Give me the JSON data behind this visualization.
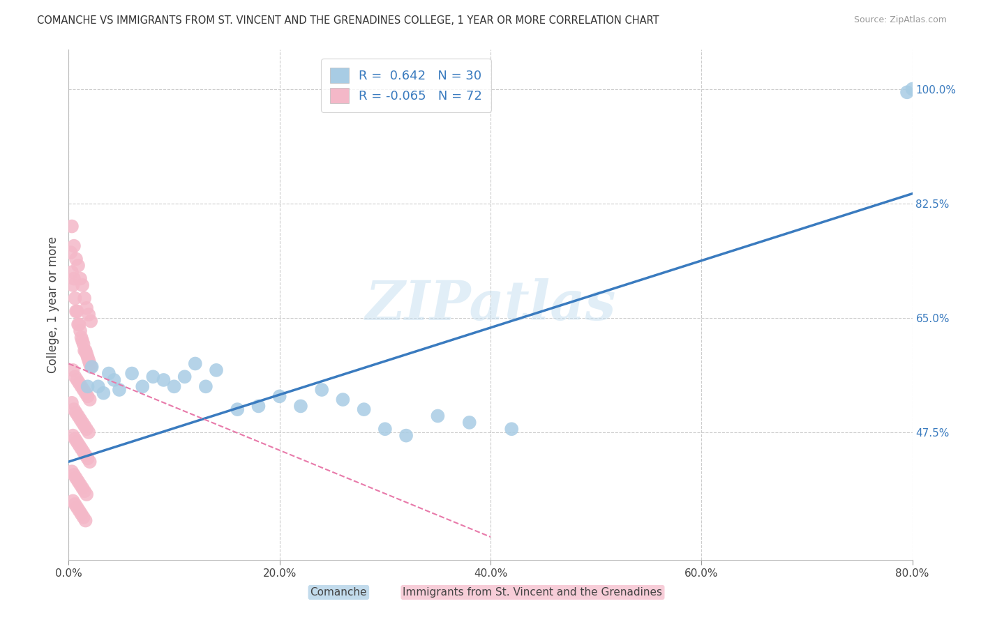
{
  "title": "COMANCHE VS IMMIGRANTS FROM ST. VINCENT AND THE GRENADINES COLLEGE, 1 YEAR OR MORE CORRELATION CHART",
  "source": "Source: ZipAtlas.com",
  "ylabel": "College, 1 year or more",
  "xlim": [
    0.0,
    0.8
  ],
  "ylim": [
    0.28,
    1.06
  ],
  "xtick_labels": [
    "0.0%",
    "20.0%",
    "40.0%",
    "60.0%",
    "80.0%"
  ],
  "xtick_vals": [
    0.0,
    0.2,
    0.4,
    0.6,
    0.8
  ],
  "ytick_vals": [
    0.475,
    0.65,
    0.825,
    1.0
  ],
  "right_ytick_labels": [
    "47.5%",
    "65.0%",
    "82.5%",
    "100.0%"
  ],
  "R_blue": 0.642,
  "N_blue": 30,
  "R_pink": -0.065,
  "N_pink": 72,
  "blue_color": "#a8cce4",
  "pink_color": "#f4b8c8",
  "blue_line_color": "#3a7bbf",
  "pink_line_color": "#e87aaa",
  "watermark": "ZIPatlas",
  "blue_scatter_x": [
    0.018,
    0.022,
    0.028,
    0.033,
    0.038,
    0.043,
    0.048,
    0.06,
    0.07,
    0.08,
    0.09,
    0.1,
    0.11,
    0.12,
    0.13,
    0.14,
    0.16,
    0.18,
    0.2,
    0.22,
    0.24,
    0.26,
    0.28,
    0.3,
    0.32,
    0.35,
    0.38,
    0.42,
    0.795,
    0.8
  ],
  "blue_scatter_y": [
    0.545,
    0.575,
    0.545,
    0.535,
    0.565,
    0.555,
    0.54,
    0.565,
    0.545,
    0.56,
    0.555,
    0.545,
    0.56,
    0.58,
    0.545,
    0.57,
    0.51,
    0.515,
    0.53,
    0.515,
    0.54,
    0.525,
    0.51,
    0.48,
    0.47,
    0.5,
    0.49,
    0.48,
    0.995,
    1.0
  ],
  "pink_scatter_x": [
    0.002,
    0.003,
    0.004,
    0.005,
    0.006,
    0.007,
    0.008,
    0.009,
    0.01,
    0.011,
    0.012,
    0.013,
    0.014,
    0.015,
    0.016,
    0.017,
    0.018,
    0.019,
    0.02,
    0.021,
    0.003,
    0.005,
    0.007,
    0.009,
    0.011,
    0.013,
    0.015,
    0.017,
    0.019,
    0.021,
    0.004,
    0.006,
    0.008,
    0.01,
    0.012,
    0.014,
    0.016,
    0.018,
    0.02,
    0.003,
    0.005,
    0.007,
    0.009,
    0.011,
    0.013,
    0.015,
    0.017,
    0.019,
    0.004,
    0.006,
    0.008,
    0.01,
    0.012,
    0.014,
    0.016,
    0.018,
    0.02,
    0.003,
    0.005,
    0.007,
    0.009,
    0.011,
    0.013,
    0.015,
    0.017,
    0.004,
    0.006,
    0.008,
    0.01,
    0.012,
    0.014,
    0.016
  ],
  "pink_scatter_y": [
    0.75,
    0.72,
    0.7,
    0.71,
    0.68,
    0.66,
    0.66,
    0.64,
    0.64,
    0.63,
    0.62,
    0.615,
    0.61,
    0.6,
    0.6,
    0.595,
    0.59,
    0.585,
    0.58,
    0.575,
    0.79,
    0.76,
    0.74,
    0.73,
    0.71,
    0.7,
    0.68,
    0.665,
    0.655,
    0.645,
    0.57,
    0.56,
    0.555,
    0.55,
    0.545,
    0.54,
    0.535,
    0.53,
    0.525,
    0.52,
    0.51,
    0.505,
    0.5,
    0.495,
    0.49,
    0.485,
    0.48,
    0.475,
    0.47,
    0.465,
    0.46,
    0.455,
    0.45,
    0.445,
    0.44,
    0.435,
    0.43,
    0.415,
    0.41,
    0.405,
    0.4,
    0.395,
    0.39,
    0.385,
    0.38,
    0.37,
    0.365,
    0.36,
    0.355,
    0.35,
    0.345,
    0.34
  ],
  "blue_trendline_x": [
    0.0,
    0.8
  ],
  "blue_trendline_y": [
    0.43,
    0.84
  ],
  "pink_trendline_x": [
    0.0,
    0.4
  ],
  "pink_trendline_y": [
    0.58,
    0.315
  ],
  "legend_labels": [
    "R =  0.642   N = 30",
    "R = -0.065   N = 72"
  ]
}
